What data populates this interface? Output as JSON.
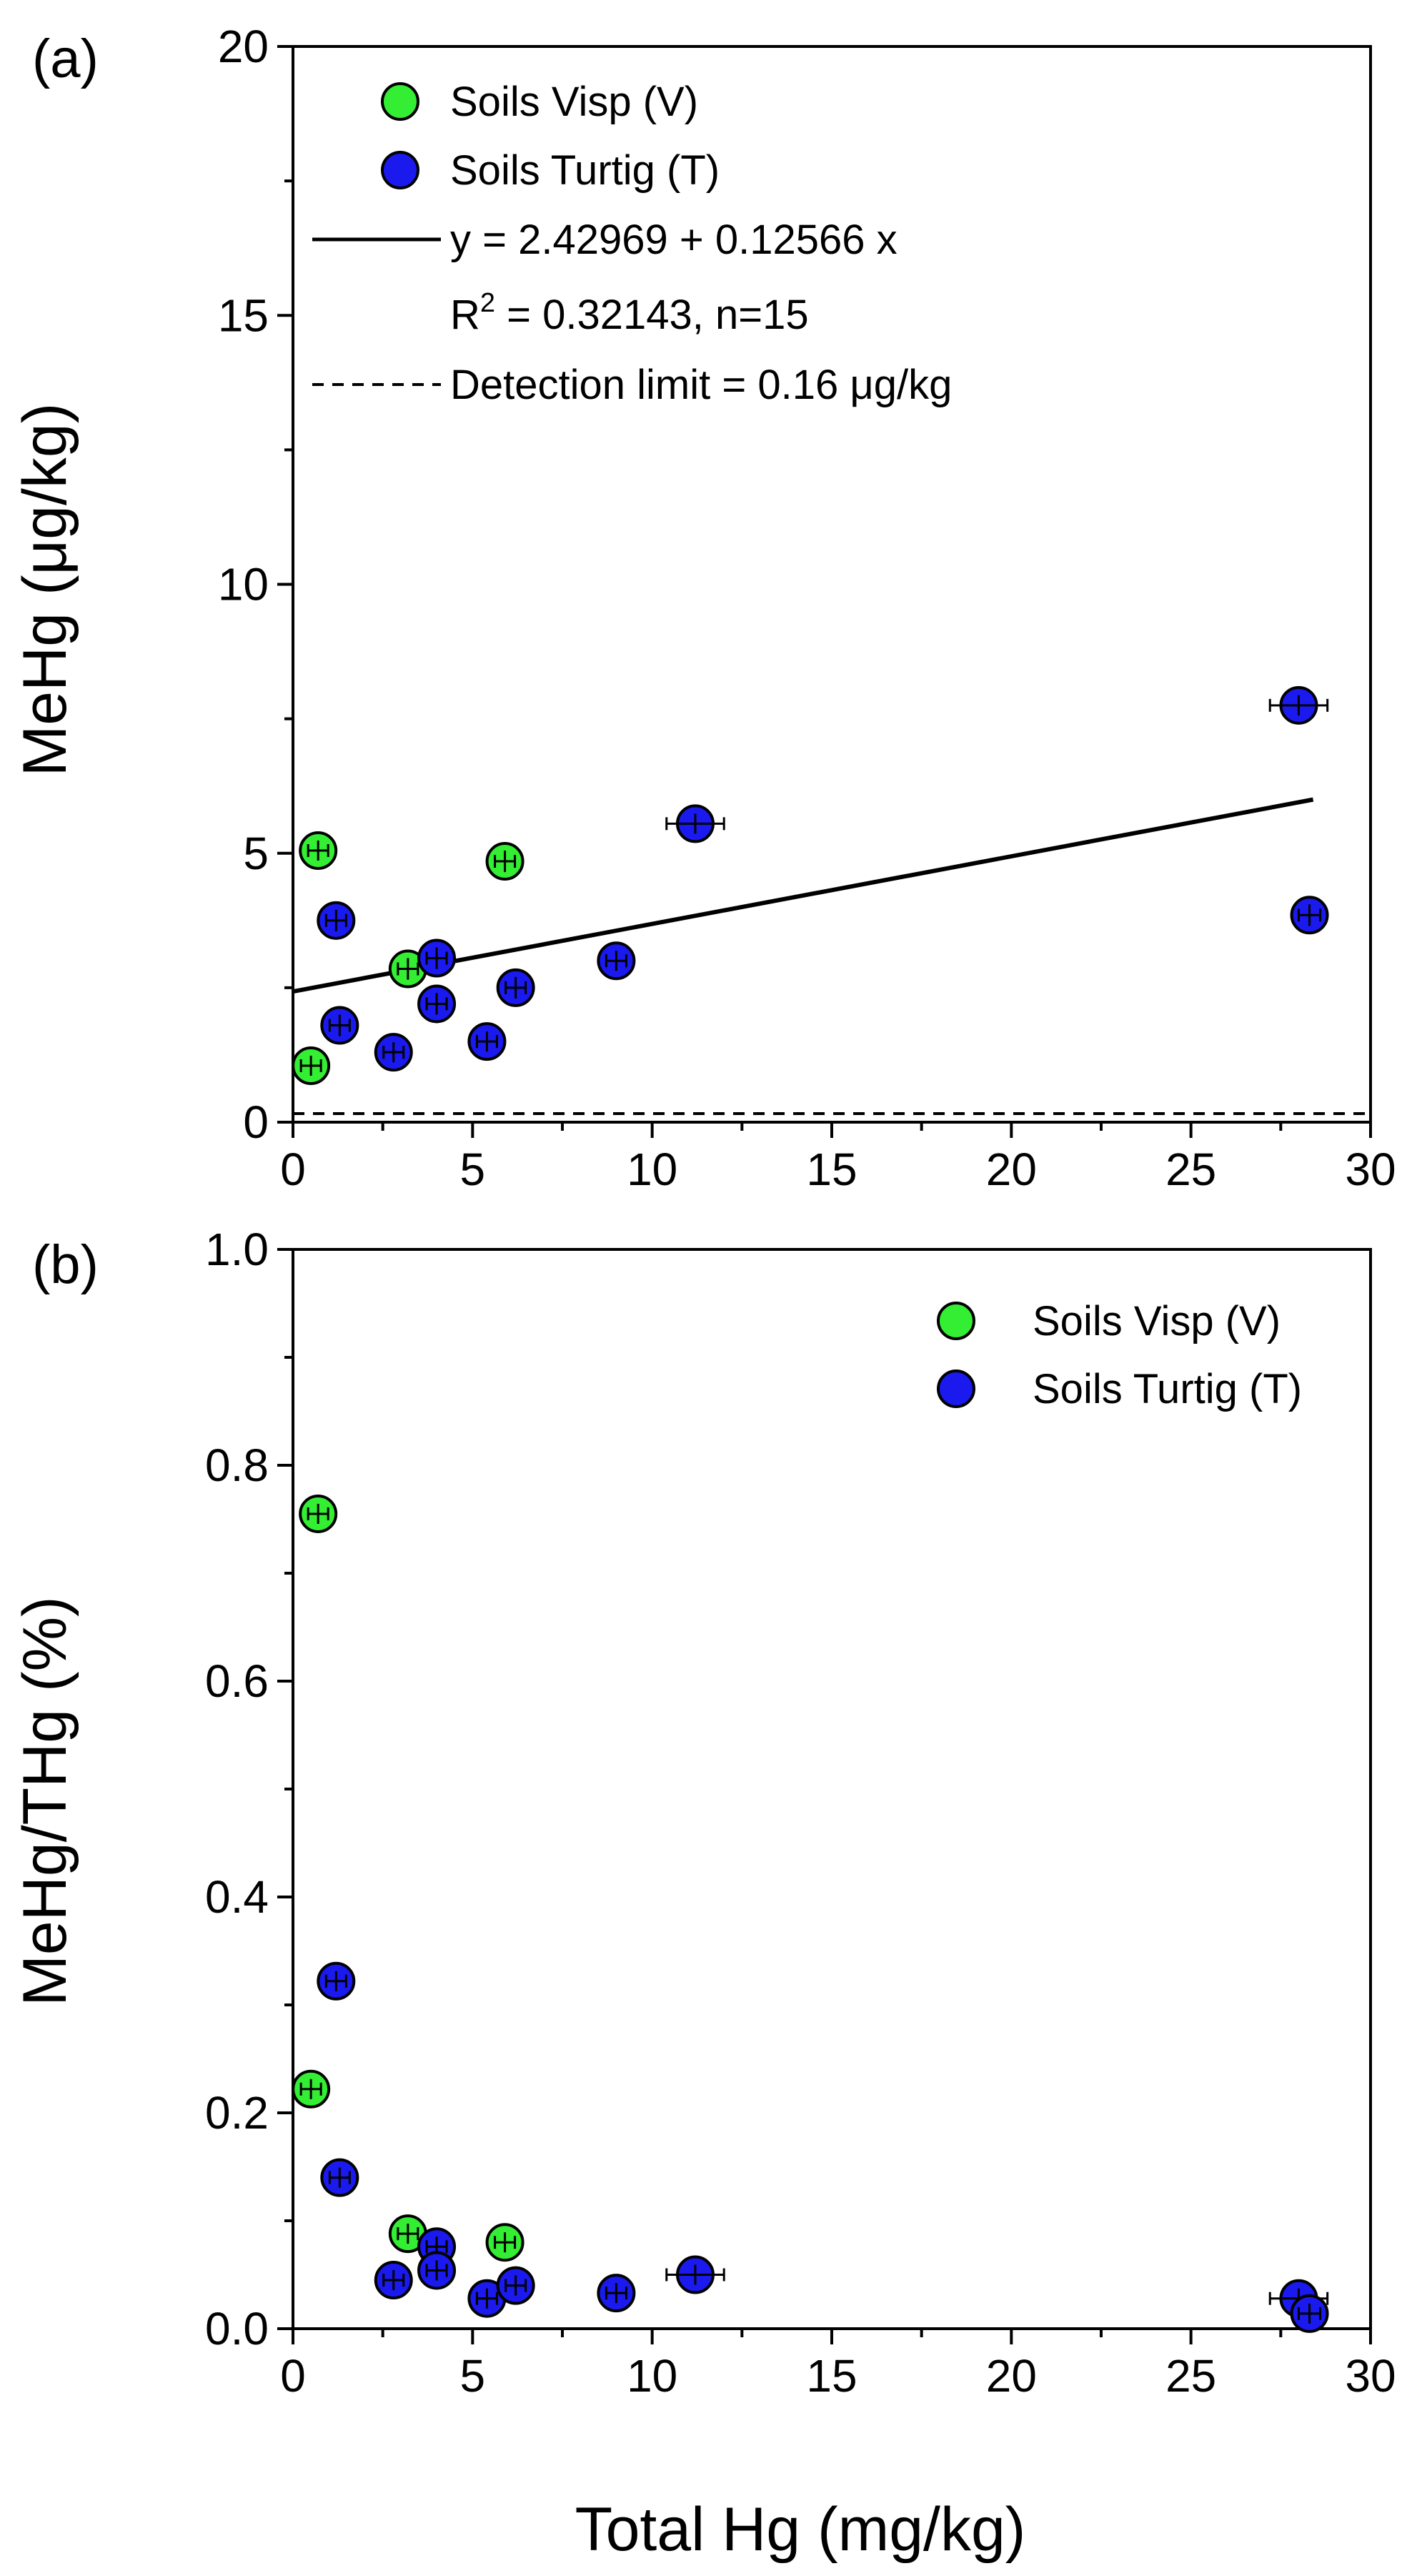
{
  "colors": {
    "visp": "#33ee33",
    "turtig": "#1a1aee",
    "axis": "#000000"
  },
  "chart_data": [
    {
      "id": "a",
      "type": "scatter",
      "panel_label": "(a)",
      "xlabel": "",
      "ylabel": "MeHg (μg/kg)",
      "xlim": [
        0,
        30
      ],
      "ylim": [
        0,
        20
      ],
      "x_ticks": [
        "0",
        "5",
        "10",
        "15",
        "20",
        "25",
        "30"
      ],
      "y_ticks": [
        "0",
        "5",
        "10",
        "15",
        "20"
      ],
      "legend": {
        "placement": "top-left",
        "entries": [
          "Soils Visp (V)",
          "Soils Turtig (T)",
          "y = 2.42969 + 0.12566 x",
          "R2 = 0.32143, n=15",
          "Detection limit = 0.16 μg/kg"
        ]
      },
      "fit": {
        "intercept": 2.42969,
        "slope": 0.12566,
        "x_range": [
          0,
          28.4
        ],
        "r2": "0.32143",
        "n": 15
      },
      "detection_limit": 0.16,
      "series": [
        {
          "name": "Soils Visp (V)",
          "color_key": "visp",
          "points": [
            {
              "x": 0.7,
              "y": 5.05,
              "xerr": 0.15,
              "yerr": 0.15
            },
            {
              "x": 0.5,
              "y": 1.05,
              "xerr": 0.15,
              "yerr": 0.15
            },
            {
              "x": 3.2,
              "y": 2.85,
              "xerr": 0.2,
              "yerr": 0.2
            },
            {
              "x": 5.9,
              "y": 4.85,
              "xerr": 0.2,
              "yerr": 0.2
            }
          ]
        },
        {
          "name": "Soils Turtig (T)",
          "color_key": "turtig",
          "points": [
            {
              "x": 1.2,
              "y": 3.75,
              "xerr": 0.15,
              "yerr": 0.2
            },
            {
              "x": 1.3,
              "y": 1.8,
              "xerr": 0.15,
              "yerr": 0.2
            },
            {
              "x": 2.8,
              "y": 1.3,
              "xerr": 0.2,
              "yerr": 0.15
            },
            {
              "x": 4.0,
              "y": 3.05,
              "xerr": 0.2,
              "yerr": 0.2
            },
            {
              "x": 4.0,
              "y": 2.2,
              "xerr": 0.2,
              "yerr": 0.2
            },
            {
              "x": 5.4,
              "y": 1.5,
              "xerr": 0.2,
              "yerr": 0.15
            },
            {
              "x": 6.2,
              "y": 2.5,
              "xerr": 0.2,
              "yerr": 0.2
            },
            {
              "x": 9.0,
              "y": 3.0,
              "xerr": 0.25,
              "yerr": 0.15
            },
            {
              "x": 11.2,
              "y": 5.55,
              "xerr": 0.8,
              "yerr": 0.15
            },
            {
              "x": 28.0,
              "y": 7.75,
              "xerr": 0.8,
              "yerr": 0.15
            },
            {
              "x": 28.3,
              "y": 3.85,
              "xerr": 0.3,
              "yerr": 0.2
            }
          ]
        }
      ]
    },
    {
      "id": "b",
      "type": "scatter",
      "panel_label": "(b)",
      "xlabel": "Total Hg (mg/kg)",
      "ylabel": "MeHg/THg (%)",
      "xlim": [
        0,
        30
      ],
      "ylim": [
        0,
        1.0
      ],
      "x_ticks": [
        "0",
        "5",
        "10",
        "15",
        "20",
        "25",
        "30"
      ],
      "y_ticks": [
        "0.0",
        "0.2",
        "0.4",
        "0.6",
        "0.8",
        "1.0"
      ],
      "legend": {
        "placement": "top-right",
        "entries": [
          "Soils Visp (V)",
          "Soils Turtig (T)"
        ]
      },
      "series": [
        {
          "name": "Soils Visp (V)",
          "color_key": "visp",
          "points": [
            {
              "x": 0.7,
              "y": 0.755,
              "xerr": 0.15,
              "yerr": 0.005
            },
            {
              "x": 0.5,
              "y": 0.222,
              "xerr": 0.15,
              "yerr": 0.005
            },
            {
              "x": 3.2,
              "y": 0.088,
              "xerr": 0.2,
              "yerr": 0.005
            },
            {
              "x": 5.9,
              "y": 0.08,
              "xerr": 0.2,
              "yerr": 0.005
            }
          ]
        },
        {
          "name": "Soils Turtig (T)",
          "color_key": "turtig",
          "points": [
            {
              "x": 1.2,
              "y": 0.322,
              "xerr": 0.15,
              "yerr": 0.005
            },
            {
              "x": 1.3,
              "y": 0.14,
              "xerr": 0.15,
              "yerr": 0.005
            },
            {
              "x": 2.8,
              "y": 0.045,
              "xerr": 0.2,
              "yerr": 0.004
            },
            {
              "x": 4.0,
              "y": 0.076,
              "xerr": 0.2,
              "yerr": 0.005
            },
            {
              "x": 4.0,
              "y": 0.054,
              "xerr": 0.2,
              "yerr": 0.004
            },
            {
              "x": 5.4,
              "y": 0.028,
              "xerr": 0.2,
              "yerr": 0.004
            },
            {
              "x": 6.2,
              "y": 0.04,
              "xerr": 0.2,
              "yerr": 0.004
            },
            {
              "x": 9.0,
              "y": 0.033,
              "xerr": 0.25,
              "yerr": 0.004
            },
            {
              "x": 11.2,
              "y": 0.05,
              "xerr": 0.8,
              "yerr": 0.004
            },
            {
              "x": 28.0,
              "y": 0.028,
              "xerr": 0.8,
              "yerr": 0.004
            },
            {
              "x": 28.3,
              "y": 0.014,
              "xerr": 0.3,
              "yerr": 0.004
            }
          ]
        }
      ]
    }
  ]
}
